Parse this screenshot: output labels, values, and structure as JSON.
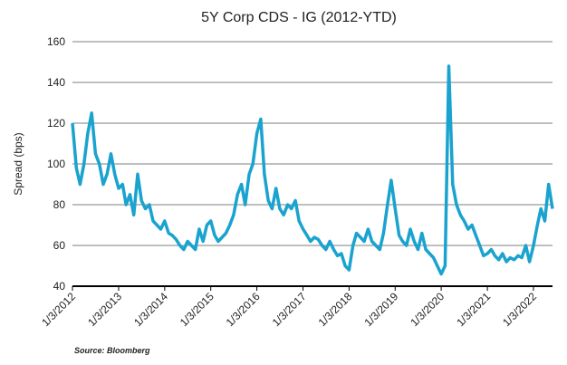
{
  "chart_data": {
    "type": "line",
    "title": "5Y Corp CDS - IG (2012-YTD)",
    "y_label": "Spread (bps)",
    "source": "Source: Bloomberg",
    "x": [
      "2012-01-03",
      "2012-02-03",
      "2012-03-03",
      "2012-04-03",
      "2012-05-03",
      "2012-06-03",
      "2012-07-03",
      "2012-08-03",
      "2012-09-03",
      "2012-10-03",
      "2012-11-03",
      "2012-12-03",
      "2013-01-03",
      "2013-02-03",
      "2013-03-03",
      "2013-04-03",
      "2013-05-03",
      "2013-06-03",
      "2013-07-03",
      "2013-08-03",
      "2013-09-03",
      "2013-10-03",
      "2013-11-03",
      "2013-12-03",
      "2014-01-03",
      "2014-02-03",
      "2014-03-03",
      "2014-04-03",
      "2014-05-03",
      "2014-06-03",
      "2014-07-03",
      "2014-08-03",
      "2014-09-03",
      "2014-10-03",
      "2014-11-03",
      "2014-12-03",
      "2015-01-03",
      "2015-02-03",
      "2015-03-03",
      "2015-04-03",
      "2015-05-03",
      "2015-06-03",
      "2015-07-03",
      "2015-08-03",
      "2015-09-03",
      "2015-10-03",
      "2015-11-03",
      "2015-12-03",
      "2016-01-03",
      "2016-02-03",
      "2016-03-03",
      "2016-04-03",
      "2016-05-03",
      "2016-06-03",
      "2016-07-03",
      "2016-08-03",
      "2016-09-03",
      "2016-10-03",
      "2016-11-03",
      "2016-12-03",
      "2017-01-03",
      "2017-02-03",
      "2017-03-03",
      "2017-04-03",
      "2017-05-03",
      "2017-06-03",
      "2017-07-03",
      "2017-08-03",
      "2017-09-03",
      "2017-10-03",
      "2017-11-03",
      "2017-12-03",
      "2018-01-03",
      "2018-02-03",
      "2018-03-03",
      "2018-04-03",
      "2018-05-03",
      "2018-06-03",
      "2018-07-03",
      "2018-08-03",
      "2018-09-03",
      "2018-10-03",
      "2018-11-03",
      "2018-12-03",
      "2019-01-03",
      "2019-02-03",
      "2019-03-03",
      "2019-04-03",
      "2019-05-03",
      "2019-06-03",
      "2019-07-03",
      "2019-08-03",
      "2019-09-03",
      "2019-10-03",
      "2019-11-03",
      "2019-12-03",
      "2020-01-03",
      "2020-02-03",
      "2020-03-03",
      "2020-04-03",
      "2020-05-03",
      "2020-06-03",
      "2020-07-03",
      "2020-08-03",
      "2020-09-03",
      "2020-10-03",
      "2020-11-03",
      "2020-12-03",
      "2021-01-03",
      "2021-02-03",
      "2021-03-03",
      "2021-04-03",
      "2021-05-03",
      "2021-06-03",
      "2021-07-03",
      "2021-08-03",
      "2021-09-03",
      "2021-10-03",
      "2021-11-03",
      "2021-12-03",
      "2022-01-03",
      "2022-02-03",
      "2022-03-03",
      "2022-04-03",
      "2022-05-03",
      "2022-06-03"
    ],
    "series": [
      {
        "name": "5Y Corp CDS - IG",
        "color": "#1aa3cf",
        "values": [
          120,
          98,
          90,
          100,
          115,
          125,
          105,
          100,
          90,
          95,
          105,
          95,
          88,
          90,
          80,
          85,
          75,
          95,
          82,
          78,
          80,
          72,
          70,
          68,
          72,
          66,
          65,
          63,
          60,
          58,
          62,
          60,
          58,
          68,
          62,
          70,
          72,
          65,
          62,
          64,
          66,
          70,
          75,
          85,
          90,
          80,
          95,
          100,
          115,
          122,
          95,
          82,
          78,
          88,
          78,
          75,
          80,
          78,
          82,
          72,
          68,
          65,
          62,
          64,
          63,
          60,
          58,
          62,
          58,
          55,
          56,
          50,
          48,
          60,
          66,
          64,
          62,
          68,
          62,
          60,
          58,
          66,
          80,
          92,
          78,
          65,
          62,
          60,
          68,
          62,
          58,
          66,
          58,
          56,
          54,
          50,
          46,
          50,
          148,
          90,
          80,
          75,
          72,
          68,
          70,
          65,
          60,
          55,
          56,
          58,
          55,
          53,
          56,
          52,
          54,
          53,
          55,
          54,
          60,
          52,
          60,
          70,
          78,
          72,
          90,
          78
        ]
      }
    ],
    "xlim": [
      "2012-01-03",
      "2022-06-03"
    ],
    "xticks": [
      {
        "value": "2012-01-03",
        "label": "1/3/2012"
      },
      {
        "value": "2013-01-03",
        "label": "1/3/2013"
      },
      {
        "value": "2014-01-03",
        "label": "1/3/2014"
      },
      {
        "value": "2015-01-03",
        "label": "1/3/2015"
      },
      {
        "value": "2016-01-03",
        "label": "1/3/2016"
      },
      {
        "value": "2017-01-03",
        "label": "1/3/2017"
      },
      {
        "value": "2018-01-03",
        "label": "1/3/2018"
      },
      {
        "value": "2019-01-03",
        "label": "1/3/2019"
      },
      {
        "value": "2020-01-03",
        "label": "1/3/2020"
      },
      {
        "value": "2021-01-03",
        "label": "1/3/2021"
      },
      {
        "value": "2022-01-03",
        "label": "1/3/2022"
      }
    ],
    "ylim": [
      40,
      160
    ],
    "yticks": [
      40,
      60,
      80,
      100,
      120,
      140,
      160
    ],
    "grid": true
  }
}
